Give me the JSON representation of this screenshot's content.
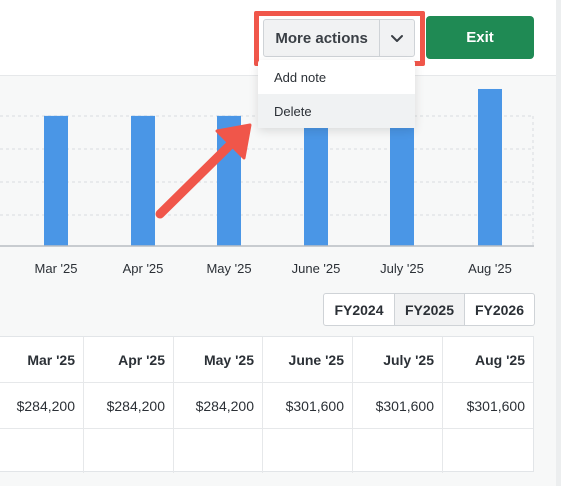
{
  "header": {
    "more_actions_label": "More actions",
    "exit_label": "Exit",
    "accent_color": "#1f8a54",
    "highlight_color": "#f0564a"
  },
  "dropdown": {
    "items": [
      {
        "label": "Add note"
      },
      {
        "label": "Delete"
      }
    ]
  },
  "chart_data": {
    "type": "bar",
    "categories": [
      "Mar '25",
      "Apr '25",
      "May '25",
      "June '25",
      "July '25",
      "Aug '25"
    ],
    "values": [
      284200,
      284200,
      284200,
      301600,
      301600,
      301600
    ],
    "bar_color": "#4a96e6",
    "grid": true
  },
  "fy_selector": {
    "options": [
      "FY2024",
      "FY2025",
      "FY2026"
    ],
    "selected": "FY2025"
  },
  "table": {
    "columns": [
      "Mar '25",
      "Apr '25",
      "May '25",
      "June '25",
      "July '25",
      "Aug '25"
    ],
    "rows": [
      [
        "$284,200",
        "$284,200",
        "$284,200",
        "$301,600",
        "$301,600",
        "$301,600"
      ],
      [
        "",
        "",
        "",
        "",
        "",
        ""
      ]
    ]
  }
}
